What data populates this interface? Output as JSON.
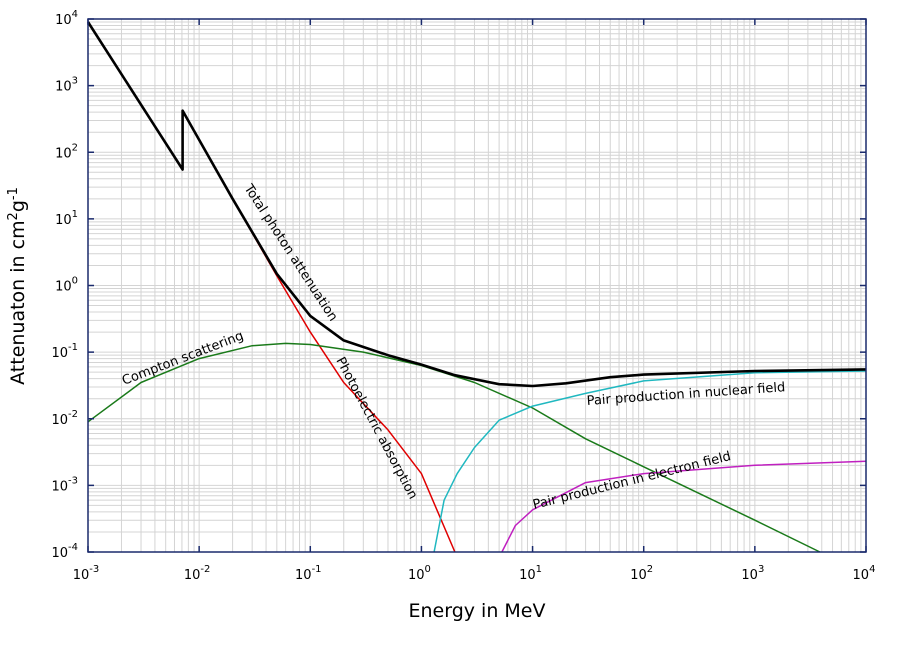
{
  "chart_data": {
    "type": "line",
    "title": "",
    "xlabel": "Energy in MeV",
    "ylabel": {
      "text": "Attenuaton in cm",
      "sup1": "2",
      "mid": "g",
      "sup2": "-1"
    },
    "xscale": "log",
    "yscale": "log",
    "xlim": [
      0.001,
      10000
    ],
    "ylim": [
      0.0001,
      10000
    ],
    "grid": true,
    "legend": "none (inline curve labels)",
    "x_ticks": [
      {
        "base": "10",
        "exp": "-3"
      },
      {
        "base": "10",
        "exp": "-2"
      },
      {
        "base": "10",
        "exp": "-1"
      },
      {
        "base": "10",
        "exp": "0"
      },
      {
        "base": "10",
        "exp": "1"
      },
      {
        "base": "10",
        "exp": "2"
      },
      {
        "base": "10",
        "exp": "3"
      },
      {
        "base": "10",
        "exp": "4"
      }
    ],
    "y_ticks": [
      {
        "base": "10",
        "exp": "-4"
      },
      {
        "base": "10",
        "exp": "-3"
      },
      {
        "base": "10",
        "exp": "-2"
      },
      {
        "base": "10",
        "exp": "-1"
      },
      {
        "base": "10",
        "exp": "0"
      },
      {
        "base": "10",
        "exp": "1"
      },
      {
        "base": "10",
        "exp": "2"
      },
      {
        "base": "10",
        "exp": "3"
      },
      {
        "base": "10",
        "exp": "4"
      }
    ],
    "series": [
      {
        "name": "Total photon attenuation",
        "color": "#000000",
        "points": [
          [
            0.001,
            9000
          ],
          [
            0.0071,
            55
          ],
          [
            0.0071,
            420
          ],
          [
            0.02,
            20
          ],
          [
            0.05,
            1.5
          ],
          [
            0.1,
            0.35
          ],
          [
            0.2,
            0.15
          ],
          [
            0.5,
            0.09
          ],
          [
            1,
            0.065
          ],
          [
            2,
            0.045
          ],
          [
            5,
            0.033
          ],
          [
            10,
            0.031
          ],
          [
            20,
            0.034
          ],
          [
            50,
            0.042
          ],
          [
            100,
            0.046
          ],
          [
            1000,
            0.052
          ],
          [
            10000,
            0.055
          ]
        ]
      },
      {
        "name": "Photoelectric absorption",
        "color": "#e00000",
        "points": [
          [
            0.0071,
            420
          ],
          [
            0.02,
            20
          ],
          [
            0.05,
            1.4
          ],
          [
            0.1,
            0.2
          ],
          [
            0.2,
            0.035
          ],
          [
            0.5,
            0.0068
          ],
          [
            1,
            0.0015
          ],
          [
            2,
            0.0001
          ]
        ]
      },
      {
        "name": "Compton scattering",
        "color": "#1a7a1a",
        "points": [
          [
            0.001,
            0.009
          ],
          [
            0.003,
            0.035
          ],
          [
            0.01,
            0.08
          ],
          [
            0.03,
            0.125
          ],
          [
            0.06,
            0.135
          ],
          [
            0.1,
            0.13
          ],
          [
            0.3,
            0.1
          ],
          [
            1,
            0.063
          ],
          [
            3,
            0.035
          ],
          [
            10,
            0.0145
          ],
          [
            30,
            0.005
          ],
          [
            100,
            0.0019
          ],
          [
            1000,
            0.0003
          ],
          [
            3850,
            0.0001
          ]
        ]
      },
      {
        "name": "Pair production in nuclear field",
        "color": "#20b8c0",
        "points": [
          [
            1.3,
            0.0001
          ],
          [
            1.6,
            0.0006
          ],
          [
            2.1,
            0.0015
          ],
          [
            3,
            0.0037
          ],
          [
            5,
            0.0095
          ],
          [
            10,
            0.0155
          ],
          [
            30,
            0.024
          ],
          [
            100,
            0.037
          ],
          [
            1000,
            0.049
          ],
          [
            10000,
            0.052
          ]
        ]
      },
      {
        "name": "Pair production in electron field",
        "color": "#c020c0",
        "points": [
          [
            5.3,
            0.0001
          ],
          [
            7,
            0.00025
          ],
          [
            10,
            0.00043
          ],
          [
            30,
            0.0011
          ],
          [
            100,
            0.0015
          ],
          [
            1000,
            0.002
          ],
          [
            10000,
            0.0023
          ]
        ]
      }
    ],
    "annotations": [
      "Total photon attenuation",
      "Photoelectric absorption",
      "Compton scattering",
      "Pair production in nuclear field",
      "Pair production in electron field"
    ],
    "frame_color": "#1a2a6c",
    "grid_color": "#d4d4d4"
  }
}
